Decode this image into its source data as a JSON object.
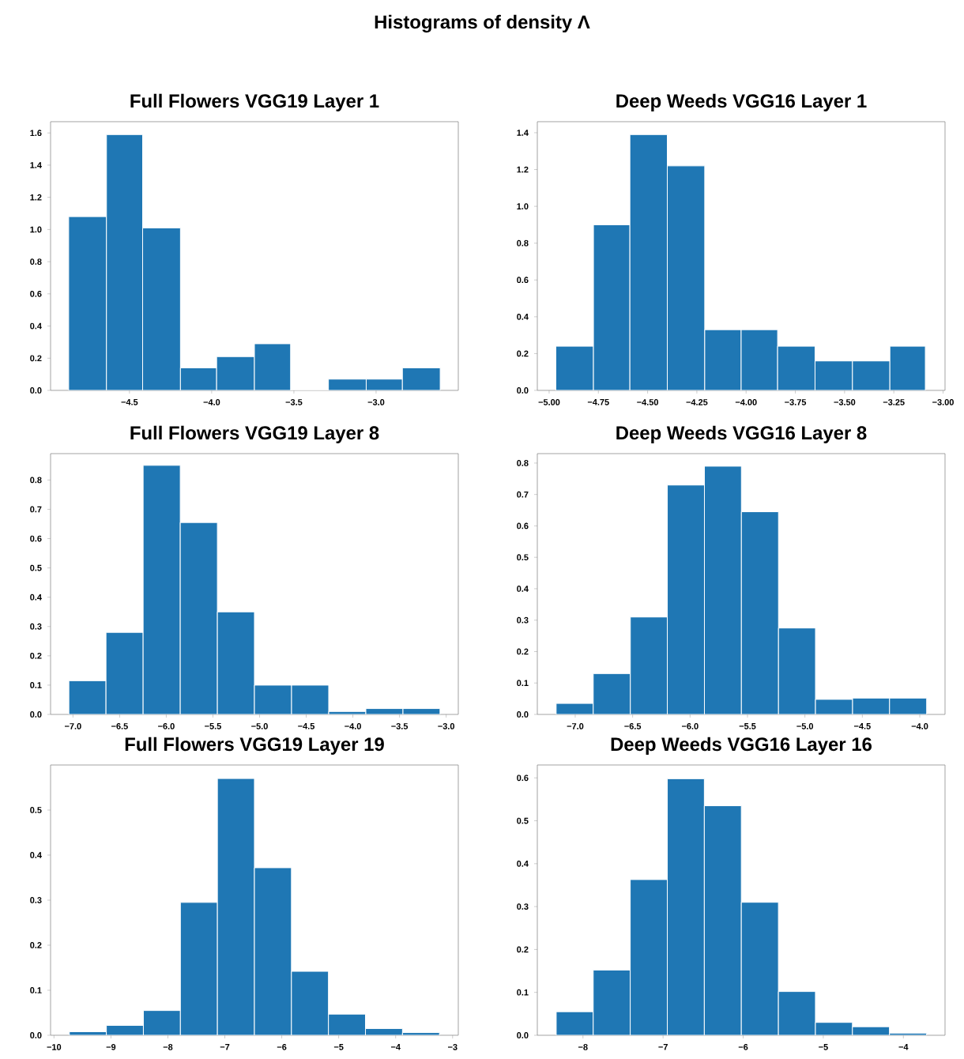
{
  "chart_data": [
    {
      "type": "other",
      "title": "Histograms of density **Λ**"
    },
    {
      "type": "histogram",
      "title": "Full Flowers VGG19 Layer 1",
      "color": "#1f77b4",
      "bins": [
        -4.87,
        -4.64,
        -4.42,
        -4.19,
        -3.97,
        -3.74,
        -3.52,
        -3.29,
        -3.06,
        -2.84,
        -2.61
      ],
      "values": [
        1.08,
        1.59,
        1.01,
        0.14,
        0.21,
        0.29,
        0,
        0.07,
        0.07,
        0.14
      ],
      "xlim": [
        -4.98,
        -2.5
      ],
      "ylim": [
        0,
        1.67
      ],
      "xticks": [
        {
          "value": -4.5,
          "label": "−4.5"
        },
        {
          "value": -4.0,
          "label": "−4.0"
        },
        {
          "value": -3.5,
          "label": "−3.5"
        },
        {
          "value": -3.0,
          "label": "−3.0"
        }
      ],
      "yticks": [
        {
          "value": 0,
          "label": "0.0"
        },
        {
          "value": 0.2,
          "label": "0.2"
        },
        {
          "value": 0.4,
          "label": "0.4"
        },
        {
          "value": 0.6,
          "label": "0.6"
        },
        {
          "value": 0.8,
          "label": "0.8"
        },
        {
          "value": 1.0,
          "label": "1.0"
        },
        {
          "value": 1.2,
          "label": "1.2"
        },
        {
          "value": 1.4,
          "label": "1.4"
        },
        {
          "value": 1.6,
          "label": "1.6"
        }
      ]
    },
    {
      "type": "histogram",
      "title": "Deep Weeds VGG16 Layer 1",
      "color": "#1f77b4",
      "bins": [
        -4.966,
        -4.775,
        -4.59,
        -4.4,
        -4.21,
        -4.025,
        -3.84,
        -3.65,
        -3.46,
        -3.27,
        -3.09
      ],
      "values": [
        0.24,
        0.9,
        1.39,
        1.22,
        0.33,
        0.33,
        0.24,
        0.16,
        0.16,
        0.24
      ],
      "xlim": [
        -5.06,
        -2.99
      ],
      "ylim": [
        0,
        1.46
      ],
      "xticks": [
        {
          "value": -5.0,
          "label": "−5.00"
        },
        {
          "value": -4.75,
          "label": "−4.75"
        },
        {
          "value": -4.5,
          "label": "−4.50"
        },
        {
          "value": -4.25,
          "label": "−4.25"
        },
        {
          "value": -4.0,
          "label": "−4.00"
        },
        {
          "value": -3.75,
          "label": "−3.75"
        },
        {
          "value": -3.5,
          "label": "−3.50"
        },
        {
          "value": -3.25,
          "label": "−3.25"
        },
        {
          "value": -3.0,
          "label": "−3.00"
        }
      ],
      "yticks": [
        {
          "value": 0,
          "label": "0.0"
        },
        {
          "value": 0.2,
          "label": "0.2"
        },
        {
          "value": 0.4,
          "label": "0.4"
        },
        {
          "value": 0.6,
          "label": "0.6"
        },
        {
          "value": 0.8,
          "label": "0.8"
        },
        {
          "value": 1.0,
          "label": "1.0"
        },
        {
          "value": 1.2,
          "label": "1.2"
        },
        {
          "value": 1.4,
          "label": "1.4"
        }
      ]
    },
    {
      "type": "histogram",
      "title": "Full Flowers VGG19 Layer 8",
      "color": "#1f77b4",
      "bins": [
        -7.044,
        -6.646,
        -6.248,
        -5.85,
        -5.452,
        -5.055,
        -4.657,
        -4.259,
        -3.861,
        -3.463,
        -3.066
      ],
      "values": [
        0.115,
        0.28,
        0.85,
        0.655,
        0.35,
        0.1,
        0.1,
        0.01,
        0.02,
        0.02
      ],
      "xlim": [
        -7.24,
        -2.87
      ],
      "ylim": [
        0,
        0.89
      ],
      "xticks": [
        {
          "value": -7.0,
          "label": "−7.0"
        },
        {
          "value": -6.5,
          "label": "−6.5"
        },
        {
          "value": -6.0,
          "label": "−6.0"
        },
        {
          "value": -5.5,
          "label": "−5.5"
        },
        {
          "value": -5.0,
          "label": "−5.0"
        },
        {
          "value": -4.5,
          "label": "−4.5"
        },
        {
          "value": -4.0,
          "label": "−4.0"
        },
        {
          "value": -3.5,
          "label": "−3.5"
        },
        {
          "value": -3.0,
          "label": "−3.0"
        }
      ],
      "yticks": [
        {
          "value": 0,
          "label": "0.0"
        },
        {
          "value": 0.1,
          "label": "0.1"
        },
        {
          "value": 0.2,
          "label": "0.2"
        },
        {
          "value": 0.3,
          "label": "0.3"
        },
        {
          "value": 0.4,
          "label": "0.4"
        },
        {
          "value": 0.5,
          "label": "0.5"
        },
        {
          "value": 0.6,
          "label": "0.6"
        },
        {
          "value": 0.7,
          "label": "0.7"
        },
        {
          "value": 0.8,
          "label": "0.8"
        }
      ]
    },
    {
      "type": "histogram",
      "title": "Deep Weeds VGG16 Layer 8",
      "color": "#1f77b4",
      "bins": [
        -7.166,
        -6.843,
        -6.52,
        -6.198,
        -5.875,
        -5.553,
        -5.23,
        -4.908,
        -4.585,
        -4.263,
        -3.94
      ],
      "values": [
        0.035,
        0.13,
        0.31,
        0.73,
        0.79,
        0.645,
        0.275,
        0.048,
        0.052,
        0.052
      ],
      "xlim": [
        -7.33,
        -3.78
      ],
      "ylim": [
        0,
        0.83
      ],
      "xticks": [
        {
          "value": -7.0,
          "label": "−7.0"
        },
        {
          "value": -6.5,
          "label": "−6.5"
        },
        {
          "value": -6.0,
          "label": "−6.0"
        },
        {
          "value": -5.5,
          "label": "−5.5"
        },
        {
          "value": -5.0,
          "label": "−5.0"
        },
        {
          "value": -4.5,
          "label": "−4.5"
        },
        {
          "value": -4.0,
          "label": "−4.0"
        }
      ],
      "yticks": [
        {
          "value": 0,
          "label": "0.0"
        },
        {
          "value": 0.1,
          "label": "0.1"
        },
        {
          "value": 0.2,
          "label": "0.2"
        },
        {
          "value": 0.3,
          "label": "0.3"
        },
        {
          "value": 0.4,
          "label": "0.4"
        },
        {
          "value": 0.5,
          "label": "0.5"
        },
        {
          "value": 0.6,
          "label": "0.6"
        },
        {
          "value": 0.7,
          "label": "0.7"
        },
        {
          "value": 0.8,
          "label": "0.8"
        }
      ]
    },
    {
      "type": "histogram",
      "title": "Full Flowers VGG19 Layer 19",
      "color": "#1f77b4",
      "bins": [
        -9.73,
        -9.08,
        -8.43,
        -7.78,
        -7.13,
        -6.48,
        -5.83,
        -5.18,
        -4.53,
        -3.88,
        -3.23
      ],
      "values": [
        0.008,
        0.022,
        0.055,
        0.295,
        0.57,
        0.372,
        0.142,
        0.047,
        0.015,
        0.006
      ],
      "xlim": [
        -10.06,
        -2.9
      ],
      "ylim": [
        0,
        0.6
      ],
      "xticks": [
        {
          "value": -10,
          "label": "−10"
        },
        {
          "value": -9,
          "label": "−9"
        },
        {
          "value": -8,
          "label": "−8"
        },
        {
          "value": -7,
          "label": "−7"
        },
        {
          "value": -6,
          "label": "−6"
        },
        {
          "value": -5,
          "label": "−5"
        },
        {
          "value": -4,
          "label": "−4"
        },
        {
          "value": -3,
          "label": "−3"
        }
      ],
      "yticks": [
        {
          "value": 0,
          "label": "0.0"
        },
        {
          "value": 0.1,
          "label": "0.1"
        },
        {
          "value": 0.2,
          "label": "0.2"
        },
        {
          "value": 0.3,
          "label": "0.3"
        },
        {
          "value": 0.4,
          "label": "0.4"
        },
        {
          "value": 0.5,
          "label": "0.5"
        }
      ]
    },
    {
      "type": "histogram",
      "title": "Deep Weeds VGG16 Layer 16",
      "color": "#1f77b4",
      "bins": [
        -8.334,
        -7.872,
        -7.41,
        -6.947,
        -6.485,
        -6.023,
        -5.56,
        -5.098,
        -4.636,
        -4.174,
        -3.71
      ],
      "values": [
        0.055,
        0.152,
        0.363,
        0.598,
        0.535,
        0.31,
        0.102,
        0.03,
        0.02,
        0.005
      ],
      "xlim": [
        -8.57,
        -3.48
      ],
      "ylim": [
        0,
        0.63
      ],
      "xticks": [
        {
          "value": -8,
          "label": "−8"
        },
        {
          "value": -7,
          "label": "−7"
        },
        {
          "value": -6,
          "label": "−6"
        },
        {
          "value": -5,
          "label": "−5"
        },
        {
          "value": -4,
          "label": "−4"
        }
      ],
      "yticks": [
        {
          "value": 0,
          "label": "0.0"
        },
        {
          "value": 0.1,
          "label": "0.1"
        },
        {
          "value": 0.2,
          "label": "0.2"
        },
        {
          "value": 0.3,
          "label": "0.3"
        },
        {
          "value": 0.4,
          "label": "0.4"
        },
        {
          "value": 0.5,
          "label": "0.5"
        },
        {
          "value": 0.6,
          "label": "0.6"
        }
      ]
    }
  ]
}
